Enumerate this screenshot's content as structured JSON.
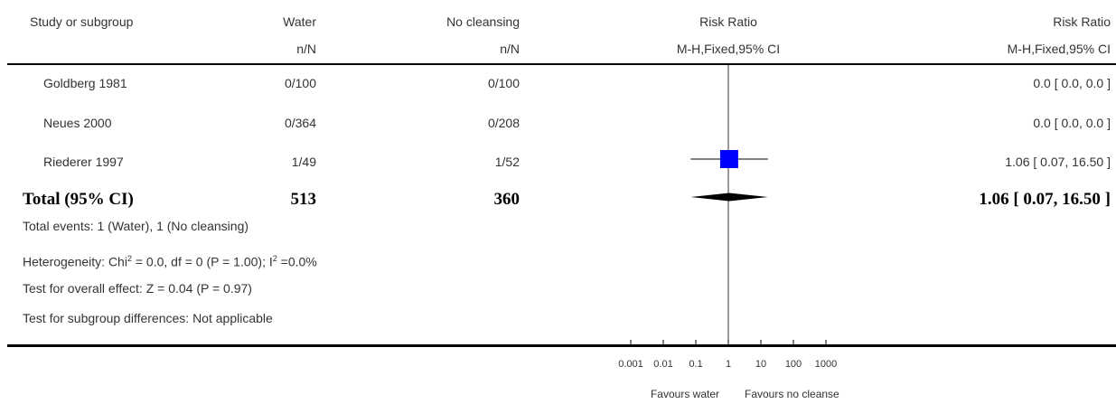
{
  "columns": {
    "study": "Study or subgroup",
    "group1": "Water",
    "group2": "No cleansing",
    "plot": "Risk Ratio",
    "effect": "Risk Ratio",
    "group1_sub": "n/N",
    "group2_sub": "n/N",
    "plot_sub": "M-H,Fixed,95% CI",
    "effect_sub": "M-H,Fixed,95% CI"
  },
  "studies": [
    {
      "name": "Goldberg 1981",
      "g1": "0/100",
      "g2": "0/100",
      "effect": "0.0 [ 0.0, 0.0 ]"
    },
    {
      "name": "Neues 2000",
      "g1": "0/364",
      "g2": "0/208",
      "effect": "0.0 [ 0.0, 0.0 ]"
    },
    {
      "name": "Riederer 1997",
      "g1": "1/49",
      "g2": "1/52",
      "effect": "1.06 [ 0.07, 16.50 ]"
    }
  ],
  "total": {
    "label": "Total (95% CI)",
    "g1": "513",
    "g2": "360",
    "effect": "1.06 [ 0.07, 16.50 ]"
  },
  "footnotes": {
    "events": "Total events: 1 (Water), 1 (No cleansing)",
    "heterogeneity_pre": "Heterogeneity: Chi",
    "heterogeneity_mid": " = 0.0, df = 0 (P = 1.00); I",
    "heterogeneity_post": " =0.0%",
    "sup2": "2",
    "overall": "Test for overall effect: Z = 0.04 (P = 0.97)",
    "subgroup": "Test for subgroup differences: Not applicable"
  },
  "axis": {
    "ticks": [
      "0.001",
      "0.01",
      "0.1",
      "1",
      "10",
      "100",
      "1000"
    ],
    "favours_left": "Favours water",
    "favours_right": "Favours no cleanse"
  },
  "colors": {
    "study_marker": "#0000ff",
    "diamond": "#000000",
    "rule": "#000000"
  },
  "chart_data": {
    "type": "forest",
    "scale": "log",
    "xlim": [
      0.001,
      1000
    ],
    "ticks": [
      0.001,
      0.01,
      0.1,
      1,
      10,
      100,
      1000
    ],
    "null_line": 1,
    "estimates": [
      {
        "study": "Riederer 1997",
        "rr": 1.06,
        "lower": 0.07,
        "upper": 16.5
      }
    ],
    "pooled": {
      "rr": 1.06,
      "lower": 0.07,
      "upper": 16.5
    }
  }
}
